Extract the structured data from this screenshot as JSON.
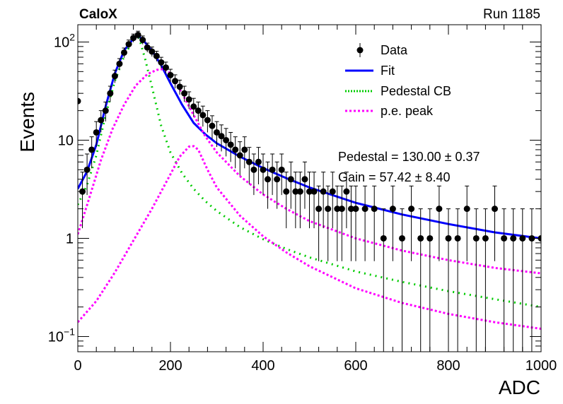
{
  "header": {
    "experiment": "CaloX",
    "run": "Run 1185"
  },
  "colors": {
    "data": "#000000",
    "fit": "#0000ff",
    "pedestal": "#00cc00",
    "pe_peak": "#ff00ff"
  },
  "chart_data": {
    "type": "scatter",
    "title": "",
    "xlabel": "ADC",
    "ylabel": "Events",
    "xlim": [
      0,
      1000
    ],
    "ylim": [
      0.07,
      150
    ],
    "y_scale": "log",
    "grid": false,
    "x_ticks": [
      0,
      200,
      400,
      600,
      800,
      1000
    ],
    "x_tick_labels": [
      "0",
      "200",
      "400",
      "600",
      "800",
      "1000"
    ],
    "y_ticks": [
      0.1,
      1,
      10,
      100
    ],
    "y_tick_labels": [
      {
        "base": "10",
        "exp": "−1"
      },
      {
        "base": "1",
        "exp": ""
      },
      {
        "base": "10",
        "exp": ""
      },
      {
        "base": "10",
        "exp": "2"
      }
    ],
    "legend": {
      "placement": "top-right",
      "entries": [
        {
          "label": "Data",
          "style": "marker",
          "color": "#000000"
        },
        {
          "label": "Fit",
          "style": "solid",
          "color": "#0000ff"
        },
        {
          "label": "Pedestal CB",
          "style": "dotted",
          "color": "#00cc00"
        },
        {
          "label": "p.e. peak",
          "style": "dotted",
          "color": "#ff00ff"
        }
      ]
    },
    "annotations": [
      "Pedestal = 130.00 ± 0.37",
      "Gain = 57.42 ± 8.40"
    ],
    "series": [
      {
        "name": "Data",
        "kind": "points_with_errors",
        "x": [
          0,
          10,
          20,
          30,
          40,
          50,
          60,
          70,
          80,
          90,
          100,
          110,
          120,
          130,
          140,
          150,
          160,
          170,
          180,
          190,
          200,
          210,
          220,
          230,
          240,
          250,
          260,
          270,
          280,
          290,
          300,
          310,
          320,
          330,
          340,
          350,
          360,
          370,
          380,
          390,
          400,
          410,
          420,
          430,
          440,
          450,
          460,
          470,
          480,
          490,
          500,
          510,
          520,
          530,
          540,
          550,
          560,
          570,
          580,
          590,
          600,
          620,
          640,
          660,
          680,
          700,
          720,
          740,
          760,
          780,
          800,
          820,
          840,
          860,
          880,
          900,
          920,
          940,
          960,
          980,
          1000
        ],
        "y": [
          25,
          3,
          5,
          8,
          12,
          16,
          20,
          30,
          45,
          60,
          78,
          95,
          110,
          118,
          105,
          88,
          80,
          72,
          62,
          55,
          46,
          40,
          35,
          30,
          26,
          22,
          20,
          18,
          16,
          14,
          12,
          11,
          10,
          9,
          8,
          7,
          8,
          6,
          5,
          6,
          5,
          4,
          5,
          4,
          5,
          3,
          4,
          3,
          3,
          4,
          3,
          3,
          2,
          3,
          2,
          3,
          2,
          2,
          3,
          2,
          2,
          2,
          2,
          1,
          2,
          1,
          2,
          1,
          1,
          2,
          1,
          1,
          2,
          1,
          1,
          2,
          1,
          1,
          1,
          1,
          1
        ]
      },
      {
        "name": "Fit",
        "kind": "line",
        "x": [
          0,
          20,
          40,
          60,
          80,
          100,
          120,
          130,
          140,
          160,
          180,
          200,
          225,
          250,
          275,
          300,
          350,
          400,
          450,
          500,
          600,
          700,
          800,
          900,
          1000
        ],
        "y": [
          3.2,
          4.8,
          9,
          22,
          48,
          82,
          108,
          116,
          106,
          82,
          58,
          38,
          23,
          15,
          11.5,
          9.3,
          6.8,
          5.2,
          4.1,
          3.3,
          2.3,
          1.75,
          1.4,
          1.15,
          1.0
        ]
      },
      {
        "name": "Pedestal CB",
        "kind": "dotted",
        "x": [
          0,
          20,
          40,
          60,
          80,
          100,
          115,
          125,
          130,
          135,
          145,
          160,
          180,
          200,
          225,
          250,
          275,
          300,
          350,
          400,
          450,
          500,
          600,
          700,
          800,
          900,
          1000
        ],
        "y": [
          2.2,
          3.5,
          7,
          18,
          40,
          72,
          96,
          110,
          113,
          100,
          68,
          35,
          14,
          7.5,
          4.6,
          3.2,
          2.4,
          1.9,
          1.3,
          0.98,
          0.78,
          0.64,
          0.46,
          0.36,
          0.29,
          0.24,
          0.2
        ]
      },
      {
        "name": "p.e. peak",
        "kind": "dotted",
        "x": [
          0,
          25,
          50,
          75,
          100,
          125,
          150,
          170,
          185,
          200,
          225,
          250,
          275,
          300,
          350,
          400,
          450,
          500,
          600,
          700,
          800,
          900,
          1000
        ],
        "y": [
          1.1,
          2.6,
          6.3,
          13,
          23,
          36,
          47,
          52,
          53,
          48,
          30,
          18,
          11,
          7.5,
          4.3,
          2.8,
          2.0,
          1.5,
          1.0,
          0.75,
          0.6,
          0.5,
          0.44
        ]
      },
      {
        "name": "p.e. peak",
        "kind": "dotted",
        "x": [
          0,
          40,
          80,
          120,
          160,
          200,
          220,
          240,
          250,
          260,
          280,
          300,
          350,
          400,
          450,
          500,
          600,
          700,
          800,
          900,
          1000
        ],
        "y": [
          0.14,
          0.23,
          0.45,
          0.95,
          2.0,
          4.5,
          6.8,
          8.6,
          8.7,
          8.0,
          5.0,
          3.3,
          1.7,
          1.05,
          0.72,
          0.52,
          0.31,
          0.22,
          0.17,
          0.14,
          0.12
        ]
      }
    ]
  }
}
